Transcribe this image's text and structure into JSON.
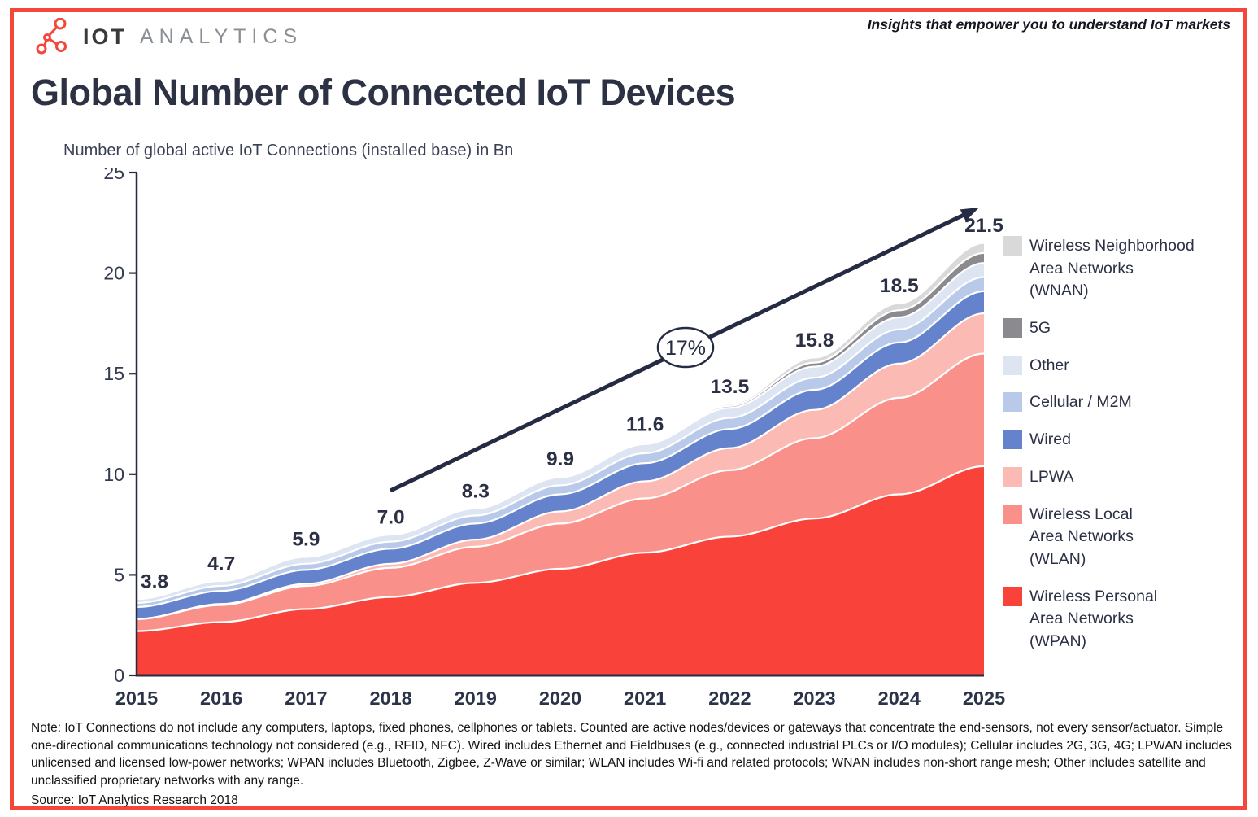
{
  "header": {
    "logo_bold": "IOT",
    "logo_light": "ANALYTICS",
    "tagline": "Insights that empower you to understand IoT markets"
  },
  "title": "Global Number of Connected IoT Devices",
  "chart_data": {
    "type": "area",
    "stacked": true,
    "title": "Number of global active IoT Connections (installed base) in Bn",
    "x": [
      2015,
      2016,
      2017,
      2018,
      2019,
      2020,
      2021,
      2022,
      2023,
      2024,
      2025
    ],
    "ylim": [
      0,
      25
    ],
    "yticks": [
      0,
      5,
      10,
      15,
      20,
      25
    ],
    "grid": false,
    "legend_position": "right",
    "totals": [
      3.8,
      4.7,
      5.9,
      7.0,
      8.3,
      9.9,
      11.6,
      13.5,
      15.8,
      18.5,
      21.5
    ],
    "total_labels": [
      "3.8",
      "4.7",
      "5.9",
      "7.0",
      "8.3",
      "9.9",
      "11.6",
      "13.5",
      "15.8",
      "18.5",
      "21.5"
    ],
    "annotation": {
      "label": "17%",
      "meaning": "CAGR trend arrow"
    },
    "series": [
      {
        "name": "Wireless Personal Area Networks (WPAN)",
        "color": "#f9423a",
        "values": [
          2.2,
          2.65,
          3.3,
          3.9,
          4.6,
          5.3,
          6.1,
          6.9,
          7.8,
          9.0,
          10.4
        ]
      },
      {
        "name": "Wireless Local Area Networks (WLAN)",
        "color": "#f9918a",
        "values": [
          0.6,
          0.85,
          1.15,
          1.45,
          1.8,
          2.25,
          2.7,
          3.3,
          4.0,
          4.8,
          5.6
        ]
      },
      {
        "name": "LPWA",
        "color": "#fbbab4",
        "values": [
          0.0,
          0.05,
          0.1,
          0.2,
          0.35,
          0.6,
          0.85,
          1.1,
          1.4,
          1.7,
          2.0
        ]
      },
      {
        "name": "Wired",
        "color": "#6583cc",
        "values": [
          0.6,
          0.65,
          0.7,
          0.75,
          0.8,
          0.85,
          0.9,
          0.95,
          1.0,
          1.05,
          1.1
        ]
      },
      {
        "name": "Cellular / M2M",
        "color": "#b9c9e9",
        "values": [
          0.2,
          0.25,
          0.3,
          0.35,
          0.4,
          0.45,
          0.5,
          0.55,
          0.6,
          0.65,
          0.7
        ]
      },
      {
        "name": "Other",
        "color": "#dde4f2",
        "values": [
          0.2,
          0.25,
          0.35,
          0.35,
          0.35,
          0.4,
          0.45,
          0.5,
          0.55,
          0.6,
          0.7
        ]
      },
      {
        "name": "5G",
        "color": "#8a8a8f",
        "values": [
          0,
          0,
          0,
          0,
          0,
          0.02,
          0.05,
          0.1,
          0.2,
          0.35,
          0.5
        ]
      },
      {
        "name": "Wireless Neighborhood Area Networks (WNAN)",
        "color": "#d9d9d9",
        "values": [
          0,
          0,
          0,
          0,
          0,
          0.03,
          0.05,
          0.1,
          0.25,
          0.35,
          0.5
        ]
      }
    ]
  },
  "legend": [
    {
      "lines": [
        "Wireless Neighborhood",
        "Area Networks",
        "(WNAN)"
      ],
      "color": "#d9d9d9"
    },
    {
      "lines": [
        "5G"
      ],
      "color": "#8a8a8f"
    },
    {
      "lines": [
        "Other"
      ],
      "color": "#dde4f2"
    },
    {
      "lines": [
        "Cellular / M2M"
      ],
      "color": "#b9c9e9"
    },
    {
      "lines": [
        "Wired"
      ],
      "color": "#6583cc"
    },
    {
      "lines": [
        "LPWA"
      ],
      "color": "#fbbab4"
    },
    {
      "lines": [
        "Wireless Local",
        "Area Networks",
        "(WLAN)"
      ],
      "color": "#f9918a"
    },
    {
      "lines": [
        "Wireless Personal",
        "Area Networks",
        "(WPAN)"
      ],
      "color": "#f9423a"
    }
  ],
  "footer": {
    "note": "Note: IoT Connections do not include any computers, laptops, fixed phones, cellphones or tablets. Counted are active nodes/devices or gateways that concentrate the end-sensors, not every sensor/actuator. Simple one-directional communications technology not considered (e.g., RFID, NFC). Wired includes Ethernet and Fieldbuses (e.g., connected industrial PLCs or I/O modules); Cellular includes 2G, 3G, 4G;  LPWAN includes unlicensed and licensed low-power networks; WPAN includes Bluetooth, Zigbee, Z-Wave or similar; WLAN includes Wi-fi and related protocols; WNAN includes non-short range mesh; Other includes satellite and unclassified proprietary networks with any range.",
    "source": "Source: IoT Analytics Research 2018"
  },
  "colors": {
    "frame": "#f4473c",
    "axis": "#262b3d",
    "text_dark": "#2b3044",
    "arrow": "#252b42",
    "separator": "#ffffff"
  }
}
